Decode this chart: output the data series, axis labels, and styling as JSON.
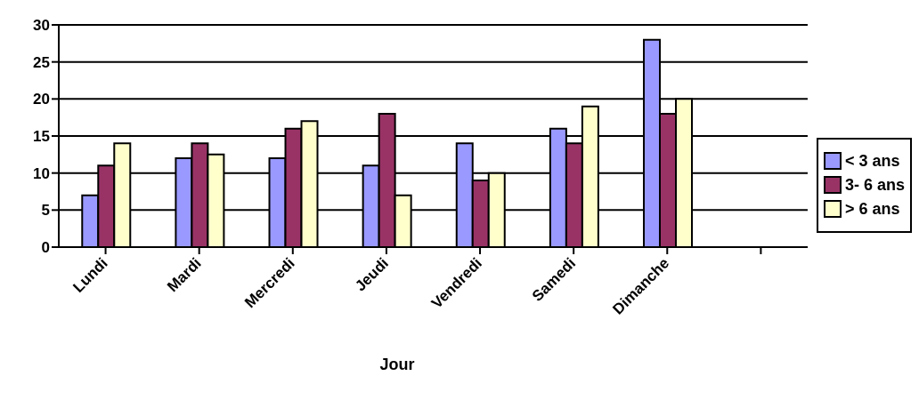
{
  "chart_data": {
    "type": "bar",
    "xlabel": "Jour",
    "categories": [
      "Lundi",
      "Mardi",
      "Mercredi",
      "Jeudi",
      "Vendredi",
      "Samedi",
      "Dimanche",
      null
    ],
    "series": [
      {
        "name": "< 3 ans",
        "color": "#9999ff",
        "values": [
          7,
          12,
          12,
          11,
          14,
          16,
          28,
          null
        ]
      },
      {
        "name": "3- 6 ans",
        "color": "#993366",
        "values": [
          11,
          14,
          16,
          18,
          9,
          14,
          18,
          null
        ]
      },
      {
        "name": "> 6 ans",
        "color": "#ffffcc",
        "values": [
          14,
          12.5,
          17,
          7,
          10,
          19,
          20,
          null
        ]
      }
    ],
    "ylim": [
      0,
      30
    ],
    "yticks": [
      0,
      5,
      10,
      15,
      20,
      25,
      30
    ],
    "grid": "y",
    "legend": "right"
  }
}
